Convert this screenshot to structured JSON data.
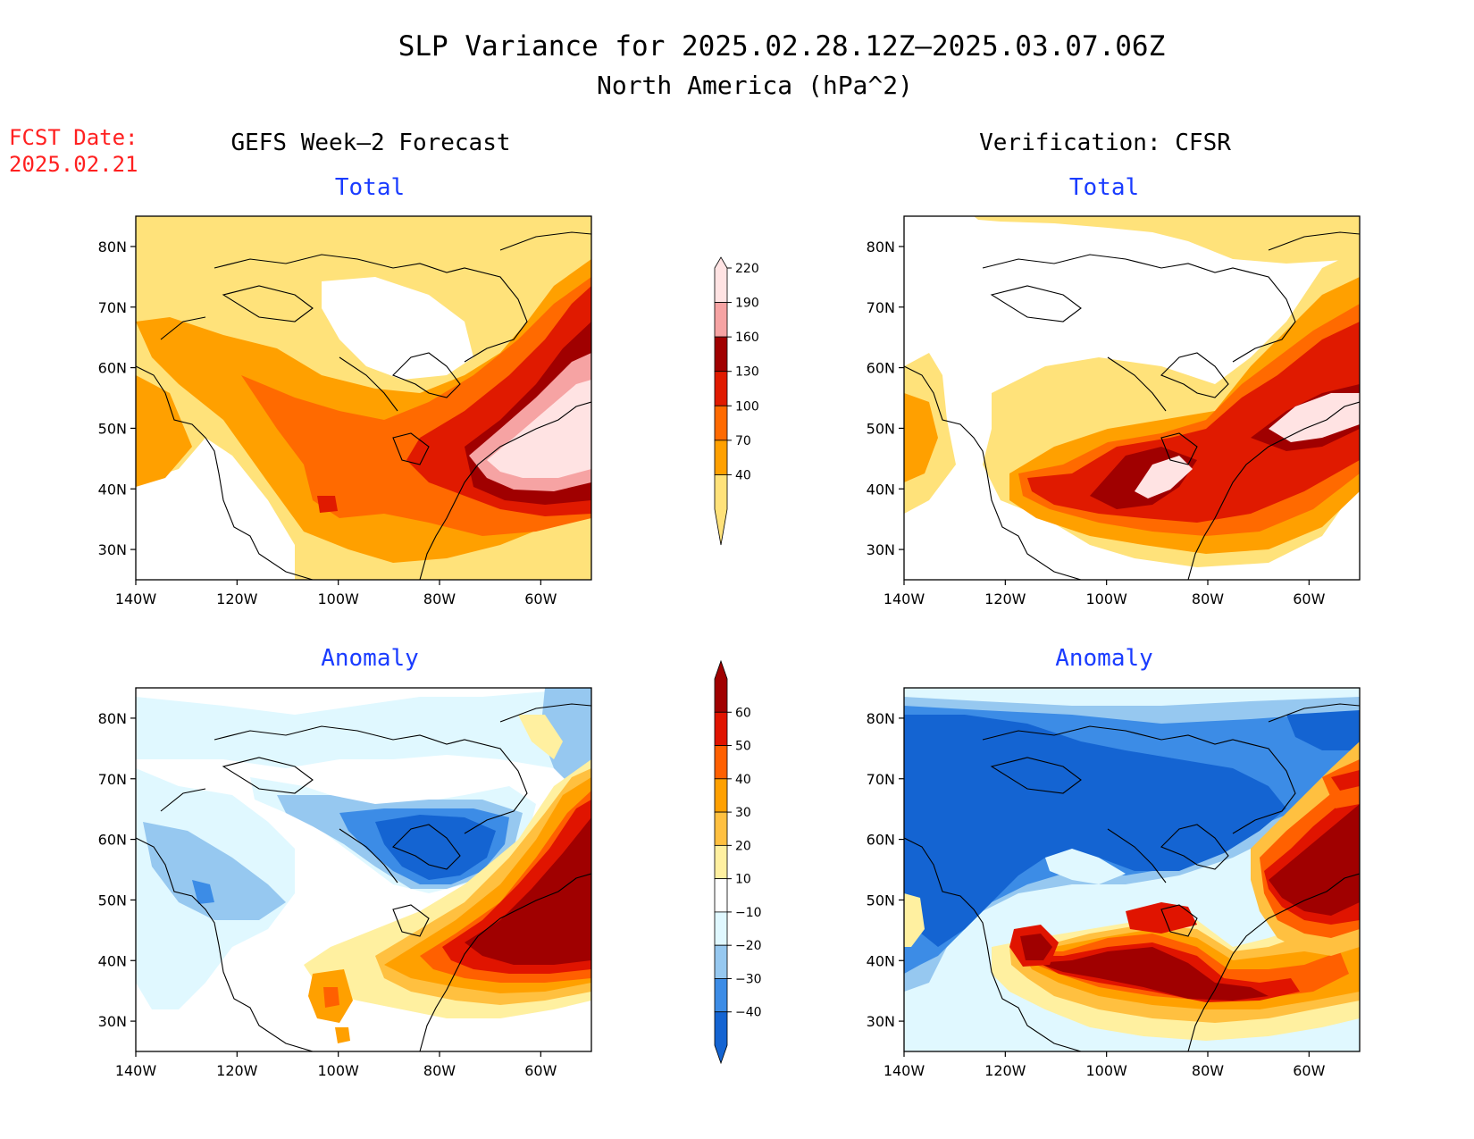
{
  "title": "SLP Variance for 2025.02.28.12Z–2025.03.07.06Z",
  "subtitle": "North America (hPa^2)",
  "fcst_label": "FCST Date:",
  "fcst_date": "2025.02.21",
  "left_header": "GEFS Week–2 Forecast",
  "right_header": "Verification: CFSR",
  "panel_titles": {
    "total": "Total",
    "anomaly": "Anomaly"
  },
  "lat_labels": [
    "80N",
    "70N",
    "60N",
    "50N",
    "40N",
    "30N"
  ],
  "lon_labels": [
    "140W",
    "120W",
    "100W",
    "80W",
    "60W"
  ],
  "colors": {
    "title": "#000000",
    "fcst": "#ff2020",
    "panel_title": "#1a3cff"
  },
  "chart_data": {
    "type": "heatmap",
    "region": {
      "lon": [
        -140,
        -50
      ],
      "lat": [
        25,
        85
      ]
    },
    "total_colorbar": {
      "levels": [
        40,
        70,
        100,
        130,
        160,
        190,
        220
      ],
      "colors": [
        "#ffe27a",
        "#ffa000",
        "#ff6a00",
        "#e01a00",
        "#a00000",
        "#f6a3a3",
        "#ffe3e3"
      ]
    },
    "anomaly_colorbar": {
      "levels": [
        -40,
        -30,
        -20,
        -10,
        10,
        20,
        30,
        40,
        50,
        60
      ],
      "colors": [
        "#1464d2",
        "#3c8ce6",
        "#96c8f0",
        "#e0f8ff",
        "#ffffff",
        "#fff0a0",
        "#ffc040",
        "#ffa000",
        "#ff6000",
        "#e01400",
        "#a00000"
      ]
    }
  }
}
